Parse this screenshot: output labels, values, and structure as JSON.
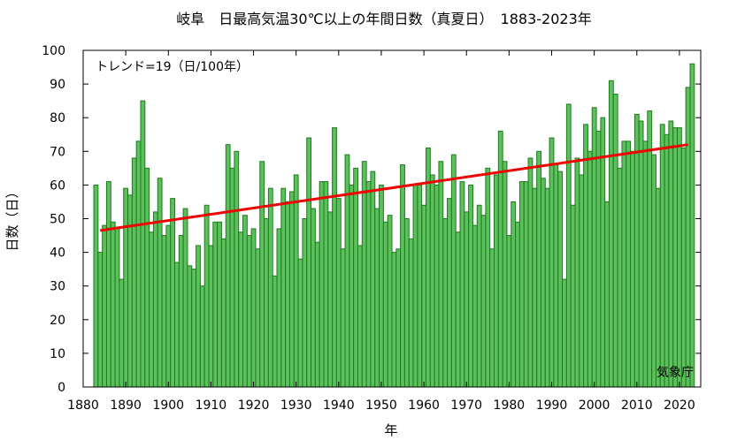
{
  "chart_data": {
    "type": "bar",
    "title": "岐阜　日最高気温30℃以上の年間日数（真夏日）　1883-2023年",
    "xlabel": "年",
    "ylabel": "日数（日）",
    "trend_label": "トレンド=19（日/100年）",
    "source": "気象庁",
    "xlim": [
      1880,
      2025
    ],
    "ylim": [
      0,
      100
    ],
    "xticks": [
      1880,
      1890,
      1900,
      1910,
      1920,
      1930,
      1940,
      1950,
      1960,
      1970,
      1980,
      1990,
      2000,
      2010,
      2020
    ],
    "yticks": [
      0,
      10,
      20,
      30,
      40,
      50,
      60,
      70,
      80,
      90,
      100
    ],
    "grid": false,
    "bar_color": "#5cc05c",
    "bar_edge_color": "#1f7a1f",
    "trend_color": "#ee0000",
    "trend": {
      "x": [
        1884,
        2022
      ],
      "y": [
        46.5,
        72
      ]
    },
    "x": [
      1883,
      1884,
      1885,
      1886,
      1887,
      1888,
      1889,
      1890,
      1891,
      1892,
      1893,
      1894,
      1895,
      1896,
      1897,
      1898,
      1899,
      1900,
      1901,
      1902,
      1903,
      1904,
      1905,
      1906,
      1907,
      1908,
      1909,
      1910,
      1911,
      1912,
      1913,
      1914,
      1915,
      1916,
      1917,
      1918,
      1919,
      1920,
      1921,
      1922,
      1923,
      1924,
      1925,
      1926,
      1927,
      1928,
      1929,
      1930,
      1931,
      1932,
      1933,
      1934,
      1935,
      1936,
      1937,
      1938,
      1939,
      1940,
      1941,
      1942,
      1943,
      1944,
      1945,
      1946,
      1947,
      1948,
      1949,
      1950,
      1951,
      1952,
      1953,
      1954,
      1955,
      1956,
      1957,
      1958,
      1959,
      1960,
      1961,
      1962,
      1963,
      1964,
      1965,
      1966,
      1967,
      1968,
      1969,
      1970,
      1971,
      1972,
      1973,
      1974,
      1975,
      1976,
      1977,
      1978,
      1979,
      1980,
      1981,
      1982,
      1983,
      1984,
      1985,
      1986,
      1987,
      1988,
      1989,
      1990,
      1991,
      1992,
      1993,
      1994,
      1995,
      1996,
      1997,
      1998,
      1999,
      2000,
      2001,
      2002,
      2003,
      2004,
      2005,
      2006,
      2007,
      2008,
      2009,
      2010,
      2011,
      2012,
      2013,
      2014,
      2015,
      2016,
      2017,
      2018,
      2019,
      2020,
      2021,
      2022,
      2023
    ],
    "values": [
      60,
      40,
      48,
      61,
      49,
      47,
      32,
      59,
      57,
      68,
      73,
      85,
      65,
      46,
      52,
      62,
      45,
      48,
      56,
      37,
      45,
      53,
      36,
      35,
      42,
      30,
      54,
      42,
      49,
      49,
      44,
      72,
      65,
      70,
      46,
      51,
      45,
      47,
      41,
      67,
      50,
      59,
      33,
      47,
      59,
      55,
      58,
      63,
      38,
      50,
      74,
      53,
      43,
      61,
      61,
      52,
      77,
      56,
      41,
      69,
      60,
      65,
      42,
      67,
      61,
      64,
      53,
      60,
      49,
      51,
      40,
      41,
      66,
      50,
      44,
      60,
      60,
      54,
      71,
      63,
      60,
      67,
      50,
      56,
      69,
      46,
      61,
      52,
      60,
      48,
      54,
      51,
      65,
      41,
      63,
      76,
      67,
      45,
      55,
      49,
      61,
      61,
      68,
      59,
      70,
      62,
      59,
      74,
      66,
      64,
      32,
      84,
      54,
      68,
      63,
      78,
      70,
      83,
      76,
      80,
      55,
      91,
      87,
      65,
      73,
      73,
      70,
      81,
      79,
      73,
      82,
      69,
      59,
      78,
      75,
      79,
      77,
      77,
      71,
      89,
      96
    ]
  }
}
